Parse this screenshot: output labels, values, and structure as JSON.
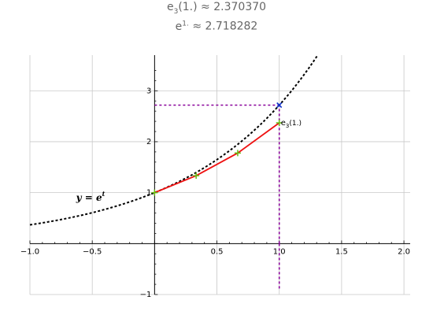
{
  "header": {
    "approx_symbol": "≈",
    "line1": {
      "base": "e",
      "sub": "3",
      "arg": "(1.)",
      "value": "2.370370"
    },
    "line2": {
      "base": "e",
      "sup": "1.",
      "value": "2.718282"
    }
  },
  "chart_data": {
    "type": "line",
    "title": "",
    "xlabel": "",
    "ylabel": "",
    "xlim": [
      -1.0,
      2.05
    ],
    "ylim": [
      -1.0,
      3.7
    ],
    "x_ticks": [
      -1.0,
      -0.5,
      0.5,
      1.0,
      1.5,
      2.0
    ],
    "x_tick_labels": [
      "−1.0",
      "−0.5",
      "0.5",
      "1.0",
      "1.5",
      "2.0"
    ],
    "y_ticks": [
      -1,
      1,
      2,
      3
    ],
    "y_tick_labels": [
      "−1",
      "1",
      "2",
      "3"
    ],
    "grid": true,
    "series": [
      {
        "function": "exp",
        "domain": [
          -1.0,
          1.31
        ],
        "style": "dotted",
        "color": "#000000",
        "label": {
          "base": "y",
          "eq": "=",
          "exp_base": "e",
          "exp_sup": "t"
        },
        "label_at": [
          -0.63,
          0.84
        ]
      },
      {
        "style": "solid",
        "color": "#ee1111",
        "x": [
          0.0,
          0.3333,
          0.6667,
          1.0
        ],
        "y": [
          1.0,
          1.3333,
          1.7778,
          2.3704
        ],
        "marker": "+",
        "marker_color": "#66bb11",
        "end_label": {
          "base": "e",
          "sub": "3",
          "arg": "(1.)"
        }
      }
    ],
    "reference_lines": {
      "color": "#880099",
      "style": "dashed",
      "horizontal": {
        "y": 2.718282,
        "x_from": 0.0,
        "x_to": 1.0
      },
      "vertical": {
        "x": 1.0,
        "y_from": 0.0,
        "y_to": 2.718282
      }
    },
    "exact_point": {
      "x": 1.0,
      "y": 2.718282,
      "marker": "×",
      "color": "#1133cc"
    }
  }
}
